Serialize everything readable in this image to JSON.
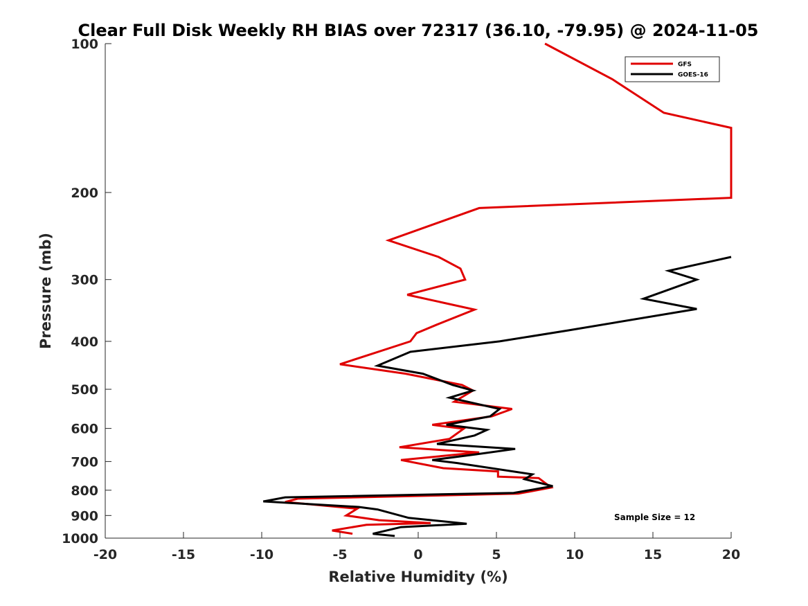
{
  "chart_data": {
    "type": "line",
    "title": "Clear Full Disk Weekly RH BIAS over 72317 (36.10, -79.95) @ 2024-11-05",
    "xlabel": "Relative Humidity (%)",
    "ylabel": "Pressure (mb)",
    "xlim": [
      -20,
      20
    ],
    "ylim": [
      100,
      1000
    ],
    "y_scale": "log",
    "y_reversed": true,
    "x_ticks": [
      -20,
      -15,
      -10,
      -5,
      0,
      5,
      10,
      15,
      20
    ],
    "y_ticks": [
      100,
      200,
      300,
      400,
      500,
      600,
      700,
      800,
      900,
      1000
    ],
    "grid": false,
    "legend_position": "top-right",
    "annotation": "Sample Size = 12",
    "series": [
      {
        "name": "GFS",
        "color": "#e00000",
        "points": [
          [
            8.1,
            100
          ],
          [
            12.4,
            118
          ],
          [
            15.7,
            138
          ],
          [
            20.0,
            148
          ],
          [
            20.0,
            205
          ],
          [
            3.9,
            215
          ],
          [
            -1.9,
            250
          ],
          [
            1.3,
            270
          ],
          [
            2.7,
            285
          ],
          [
            3.0,
            300
          ],
          [
            -0.7,
            322
          ],
          [
            3.6,
            345
          ],
          [
            1.2,
            370
          ],
          [
            -0.1,
            385
          ],
          [
            -0.5,
            400
          ],
          [
            -5.0,
            445
          ],
          [
            -0.8,
            465
          ],
          [
            2.8,
            490
          ],
          [
            3.5,
            503
          ],
          [
            2.3,
            530
          ],
          [
            6.0,
            548
          ],
          [
            4.7,
            567
          ],
          [
            0.9,
            590
          ],
          [
            2.9,
            601
          ],
          [
            2.0,
            630
          ],
          [
            -1.2,
            655
          ],
          [
            3.9,
            671
          ],
          [
            1.6,
            682
          ],
          [
            -1.1,
            695
          ],
          [
            1.6,
            722
          ],
          [
            5.1,
            733
          ],
          [
            5.1,
            751
          ],
          [
            7.7,
            756
          ],
          [
            8.5,
            790
          ],
          [
            6.4,
            813
          ],
          [
            -7.7,
            832
          ],
          [
            -8.5,
            845
          ],
          [
            -3.9,
            872
          ],
          [
            -4.6,
            900
          ],
          [
            -2.5,
            920
          ],
          [
            0.8,
            932
          ],
          [
            -3.3,
            940
          ],
          [
            -5.5,
            965
          ],
          [
            -4.2,
            980
          ]
        ]
      },
      {
        "name": "GOES-16",
        "color": "#000000",
        "points": [
          [
            20.0,
            270
          ],
          [
            16.0,
            288
          ],
          [
            17.8,
            300
          ],
          [
            14.4,
            328
          ],
          [
            17.8,
            344
          ],
          [
            9.6,
            380
          ],
          [
            5.2,
            400
          ],
          [
            -0.5,
            420
          ],
          [
            -2.6,
            448
          ],
          [
            0.3,
            465
          ],
          [
            2.2,
            490
          ],
          [
            3.5,
            503
          ],
          [
            2.0,
            520
          ],
          [
            5.2,
            548
          ],
          [
            4.6,
            567
          ],
          [
            1.8,
            590
          ],
          [
            4.4,
            604
          ],
          [
            3.6,
            620
          ],
          [
            1.2,
            645
          ],
          [
            6.2,
            660
          ],
          [
            3.7,
            677
          ],
          [
            0.9,
            695
          ],
          [
            2.5,
            705
          ],
          [
            7.3,
            743
          ],
          [
            6.8,
            760
          ],
          [
            8.6,
            785
          ],
          [
            6.1,
            810
          ],
          [
            -8.5,
            827
          ],
          [
            -9.9,
            843
          ],
          [
            -3.8,
            865
          ],
          [
            -2.6,
            875
          ],
          [
            -0.6,
            910
          ],
          [
            3.1,
            935
          ],
          [
            -1.1,
            950
          ],
          [
            -2.9,
            980
          ],
          [
            -1.5,
            990
          ]
        ]
      }
    ]
  }
}
